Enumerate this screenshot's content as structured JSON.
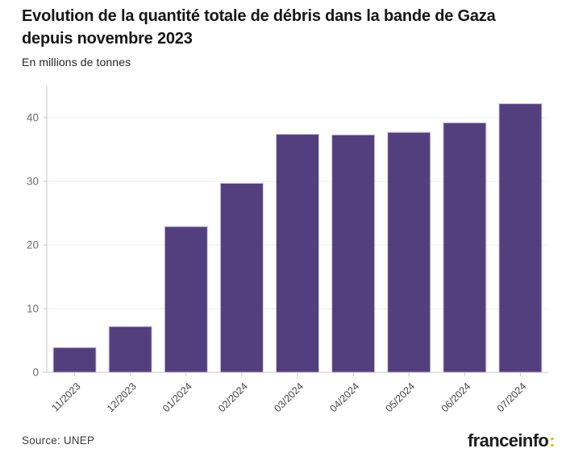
{
  "header": {
    "title": "Evolution de la quantité totale de débris dans la bande de Gaza depuis novembre 2023",
    "title_lines": [
      "Evolution de la quantité totale de débris dans la bande de Gaza",
      "depuis novembre 2023"
    ],
    "subtitle": "En millions de tonnes"
  },
  "footer": {
    "source": "Source: UNEP",
    "brand": "franceinfo",
    "brand_colon": ":"
  },
  "colors": {
    "bar_fill": "#533F7D",
    "bar_stroke": "#CFC8E0",
    "grid": "#ECECEC",
    "axis": "#C9C9C9",
    "tick_label_y": "#6F6F6F",
    "tick_label_x": "#454545",
    "title_text": "#161616",
    "brand_gold": "#F1B30E"
  },
  "chart_data": {
    "type": "bar",
    "title": "Evolution de la quantité totale de débris dans la bande de Gaza depuis novembre 2023",
    "subtitle": "En millions de tonnes",
    "categories": [
      "11/2023",
      "12/2023",
      "01/2024",
      "02/2024",
      "03/2024",
      "04/2024",
      "05/2024",
      "06/2024",
      "07/2024"
    ],
    "values": [
      3.9,
      7.2,
      22.9,
      29.7,
      37.4,
      37.3,
      37.7,
      39.2,
      42.2
    ],
    "xlabel": "",
    "ylabel": "En millions de tonnes",
    "ylim": [
      0,
      45
    ],
    "yticks": [
      0,
      10,
      20,
      30,
      40
    ],
    "grid": true,
    "legend": false,
    "bar_orientation": "vertical",
    "x_tick_rotation": -45
  }
}
